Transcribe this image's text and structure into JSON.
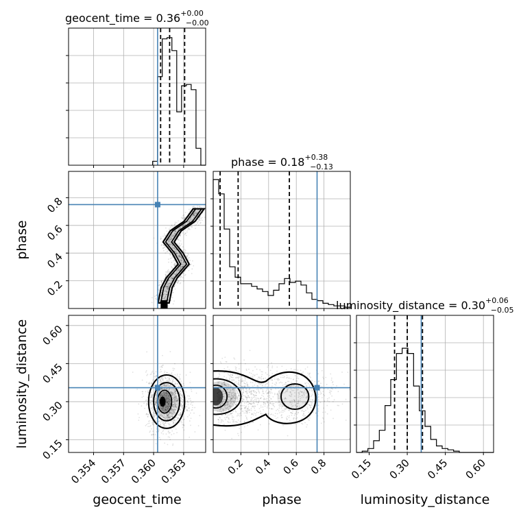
{
  "chart_data": {
    "type": "corner",
    "parameters": [
      "geocent_time",
      "phase",
      "luminosity_distance"
    ],
    "truth": {
      "geocent_time": 0.3604,
      "phase": 0.75,
      "luminosity_distance": 0.355
    },
    "colors": {
      "truth": "#4682b4",
      "hist": "#000000",
      "grid": "#b0b0b0",
      "points": "#000000"
    },
    "titles": {
      "geocent_time": {
        "name": "geocent_time",
        "median": "0.36",
        "plus": "+0.00",
        "minus": "−0.00"
      },
      "phase": {
        "name": "phase",
        "median": "0.18",
        "plus": "+0.38",
        "minus": "−0.13"
      },
      "luminosity_distance": {
        "name": "luminosity_distance",
        "median": "0.30",
        "plus": "+0.06",
        "minus": "−0.05"
      }
    },
    "ranges": {
      "geocent_time": [
        0.3515,
        0.3652
      ],
      "phase": [
        0.0,
        0.99
      ],
      "luminosity_distance": [
        0.1,
        0.64
      ]
    },
    "ticks": {
      "geocent_time": {
        "values": [
          0.354,
          0.357,
          0.36,
          0.363
        ],
        "labels": [
          "0.354",
          "0.357",
          "0.360",
          "0.363"
        ]
      },
      "phase": {
        "values": [
          0.2,
          0.4,
          0.6,
          0.8
        ],
        "labels": [
          "0.2",
          "0.4",
          "0.6",
          "0.8"
        ]
      },
      "luminosity_distance": {
        "values": [
          0.15,
          0.3,
          0.45,
          0.6
        ],
        "labels": [
          "0.15",
          "0.30",
          "0.45",
          "0.60"
        ]
      }
    },
    "quantiles": {
      "geocent_time": [
        0.3607,
        0.3616,
        0.3631
      ],
      "phase": [
        0.05,
        0.18,
        0.55
      ],
      "luminosity_distance": [
        0.25,
        0.3,
        0.36
      ]
    },
    "histograms": {
      "geocent_time": {
        "lo": 0.3599,
        "hi": 0.3652,
        "counts": [
          0.03,
          0.68,
          0.97,
          0.98,
          0.88,
          0.41,
          0.61,
          0.62,
          0.58,
          0.13,
          0.0
        ]
      },
      "phase": {
        "lo": 0.0,
        "hi": 0.99,
        "counts": [
          0.99,
          0.88,
          0.61,
          0.32,
          0.24,
          0.19,
          0.19,
          0.17,
          0.15,
          0.13,
          0.1,
          0.14,
          0.19,
          0.23,
          0.2,
          0.21,
          0.18,
          0.12,
          0.07,
          0.06,
          0.04,
          0.03,
          0.02,
          0.02,
          0.01
        ]
      },
      "luminosity_distance": {
        "lo": 0.1,
        "hi": 0.64,
        "counts": [
          0.0,
          0.01,
          0.03,
          0.09,
          0.17,
          0.36,
          0.56,
          0.76,
          0.8,
          0.76,
          0.51,
          0.32,
          0.2,
          0.1,
          0.05,
          0.03,
          0.02,
          0.01,
          0.0,
          0.0,
          0.0,
          0.0,
          0.0,
          0.0
        ]
      }
    },
    "joint": {
      "phase_vs_geocent_time": {
        "ridge": [
          [
            0.361,
            0.04
          ],
          [
            0.3613,
            0.15
          ],
          [
            0.3618,
            0.22
          ],
          [
            0.363,
            0.32
          ],
          [
            0.3624,
            0.4
          ],
          [
            0.3615,
            0.48
          ],
          [
            0.3622,
            0.56
          ],
          [
            0.3636,
            0.63
          ],
          [
            0.3645,
            0.72
          ]
        ]
      },
      "luminosity_distance_vs_geocent_time": {
        "center": [
          0.3613,
          0.3
        ],
        "spread": [
          0.001,
          0.055
        ]
      },
      "luminosity_distance_vs_phase": {
        "modes": [
          [
            0.03,
            0.32
          ],
          [
            0.6,
            0.32
          ]
        ],
        "spread": [
          0.15,
          0.055
        ]
      }
    },
    "axis_labels": {
      "geocent_time": "geocent_time",
      "phase": "phase",
      "luminosity_distance": "luminosity_distance"
    }
  }
}
